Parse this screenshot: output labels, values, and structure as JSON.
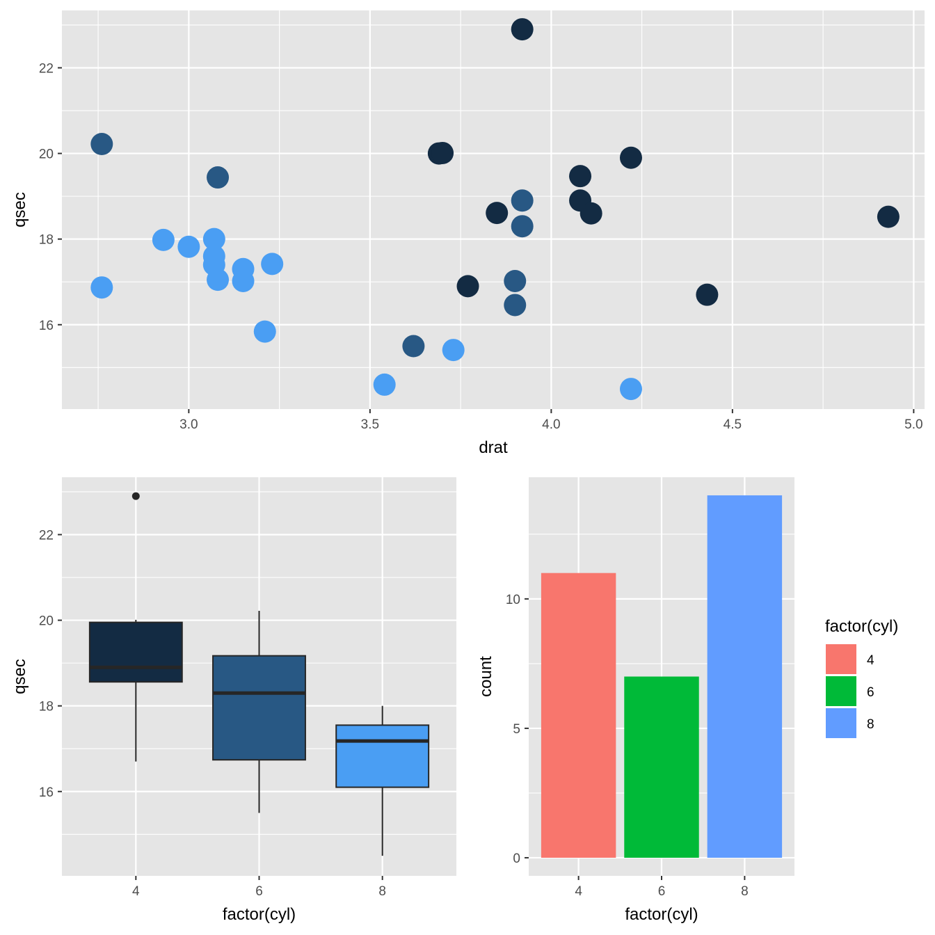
{
  "chart_data": [
    {
      "type": "scatter",
      "title": "",
      "xlabel": "drat",
      "ylabel": "qsec",
      "xlim": [
        2.65,
        5.03
      ],
      "ylim": [
        14.03,
        23.34
      ],
      "xticks": [
        3.0,
        3.5,
        4.0,
        4.5,
        5.0
      ],
      "xtick_labels": [
        "3.0",
        "3.5",
        "4.0",
        "4.5",
        "5.0"
      ],
      "yticks": [
        16,
        18,
        20,
        22
      ],
      "ytick_labels": [
        "16",
        "18",
        "20",
        "22"
      ],
      "grid": true,
      "legend": "none",
      "color_by": "cyl",
      "colors": {
        "4": "#132B43",
        "6": "#285884",
        "8": "#4A9EF3"
      },
      "points": [
        {
          "x": 3.9,
          "y": 16.46,
          "g": "6"
        },
        {
          "x": 3.9,
          "y": 17.02,
          "g": "6"
        },
        {
          "x": 3.85,
          "y": 18.61,
          "g": "4"
        },
        {
          "x": 3.08,
          "y": 19.44,
          "g": "6"
        },
        {
          "x": 3.15,
          "y": 17.02,
          "g": "8"
        },
        {
          "x": 2.76,
          "y": 20.22,
          "g": "6"
        },
        {
          "x": 3.21,
          "y": 15.84,
          "g": "8"
        },
        {
          "x": 3.69,
          "y": 20.0,
          "g": "4"
        },
        {
          "x": 3.92,
          "y": 22.9,
          "g": "4"
        },
        {
          "x": 3.92,
          "y": 18.3,
          "g": "6"
        },
        {
          "x": 3.92,
          "y": 18.9,
          "g": "6"
        },
        {
          "x": 3.07,
          "y": 17.4,
          "g": "8"
        },
        {
          "x": 3.07,
          "y": 17.6,
          "g": "8"
        },
        {
          "x": 3.07,
          "y": 18.0,
          "g": "8"
        },
        {
          "x": 2.93,
          "y": 17.98,
          "g": "8"
        },
        {
          "x": 3.0,
          "y": 17.82,
          "g": "8"
        },
        {
          "x": 3.23,
          "y": 17.42,
          "g": "8"
        },
        {
          "x": 4.08,
          "y": 19.47,
          "g": "4"
        },
        {
          "x": 4.93,
          "y": 18.52,
          "g": "4"
        },
        {
          "x": 4.22,
          "y": 19.9,
          "g": "4"
        },
        {
          "x": 3.7,
          "y": 20.01,
          "g": "4"
        },
        {
          "x": 2.76,
          "y": 16.87,
          "g": "8"
        },
        {
          "x": 3.15,
          "y": 17.3,
          "g": "8"
        },
        {
          "x": 3.73,
          "y": 15.41,
          "g": "8"
        },
        {
          "x": 3.08,
          "y": 17.05,
          "g": "8"
        },
        {
          "x": 4.08,
          "y": 18.9,
          "g": "4"
        },
        {
          "x": 4.43,
          "y": 16.7,
          "g": "4"
        },
        {
          "x": 3.77,
          "y": 16.9,
          "g": "4"
        },
        {
          "x": 4.22,
          "y": 14.5,
          "g": "8"
        },
        {
          "x": 3.62,
          "y": 15.5,
          "g": "6"
        },
        {
          "x": 3.54,
          "y": 14.6,
          "g": "8"
        },
        {
          "x": 4.11,
          "y": 18.6,
          "g": "4"
        }
      ]
    },
    {
      "type": "box",
      "title": "",
      "xlabel": "factor(cyl)",
      "ylabel": "qsec",
      "categories": [
        "4",
        "6",
        "8"
      ],
      "ylim": [
        14.03,
        23.34
      ],
      "yticks": [
        16,
        18,
        20,
        22
      ],
      "ytick_labels": [
        "16",
        "18",
        "20",
        "22"
      ],
      "grid": true,
      "legend": "none",
      "boxes": [
        {
          "category": "4",
          "whisker_low": 16.7,
          "q1": 18.56,
          "median": 18.9,
          "q3": 19.95,
          "whisker_high": 20.01,
          "outliers": [
            22.9
          ],
          "fill": "#132B43"
        },
        {
          "category": "6",
          "whisker_low": 15.5,
          "q1": 16.74,
          "median": 18.3,
          "q3": 19.17,
          "whisker_high": 20.22,
          "outliers": [],
          "fill": "#285884"
        },
        {
          "category": "8",
          "whisker_low": 14.5,
          "q1": 16.1,
          "median": 17.18,
          "q3": 17.55,
          "whisker_high": 18.0,
          "outliers": [],
          "fill": "#4A9EF3"
        }
      ]
    },
    {
      "type": "bar",
      "title": "",
      "xlabel": "factor(cyl)",
      "ylabel": "count",
      "categories": [
        "4",
        "6",
        "8"
      ],
      "values": [
        11,
        7,
        14
      ],
      "ylim": [
        -0.7,
        14.7
      ],
      "yticks": [
        0,
        5,
        10
      ],
      "ytick_labels": [
        "0",
        "5",
        "10"
      ],
      "grid": true,
      "legend": "right",
      "colors": [
        "#F8766D",
        "#00BA38",
        "#619CFF"
      ],
      "legend_title": "factor(cyl)",
      "legend_items": [
        {
          "label": "4",
          "color": "#F8766D"
        },
        {
          "label": "6",
          "color": "#00BA38"
        },
        {
          "label": "8",
          "color": "#619CFF"
        }
      ]
    }
  ]
}
